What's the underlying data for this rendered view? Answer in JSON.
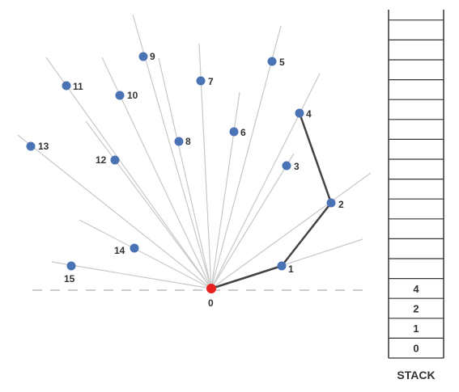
{
  "colors": {
    "ray": "#c8c8c8",
    "hull": "#444444",
    "point": "#4a73b5",
    "pivot": "#e82020",
    "baseline": "#bbbbbb",
    "stack_border": "#333333",
    "text": "#333333"
  },
  "points": [
    {
      "label": "0"
    },
    {
      "label": "1"
    },
    {
      "label": "2"
    },
    {
      "label": "3"
    },
    {
      "label": "4"
    },
    {
      "label": "5"
    },
    {
      "label": "6"
    },
    {
      "label": "7"
    },
    {
      "label": "8"
    },
    {
      "label": "9"
    },
    {
      "label": "10"
    },
    {
      "label": "11"
    },
    {
      "label": "12"
    },
    {
      "label": "13"
    },
    {
      "label": "14"
    },
    {
      "label": "15"
    }
  ],
  "hull_path_indices": [
    0,
    1,
    2,
    4
  ],
  "stack": {
    "title": "STACK",
    "total_slots": 17,
    "entries_bottom_to_top": [
      "0",
      "1",
      "2",
      "4"
    ]
  }
}
